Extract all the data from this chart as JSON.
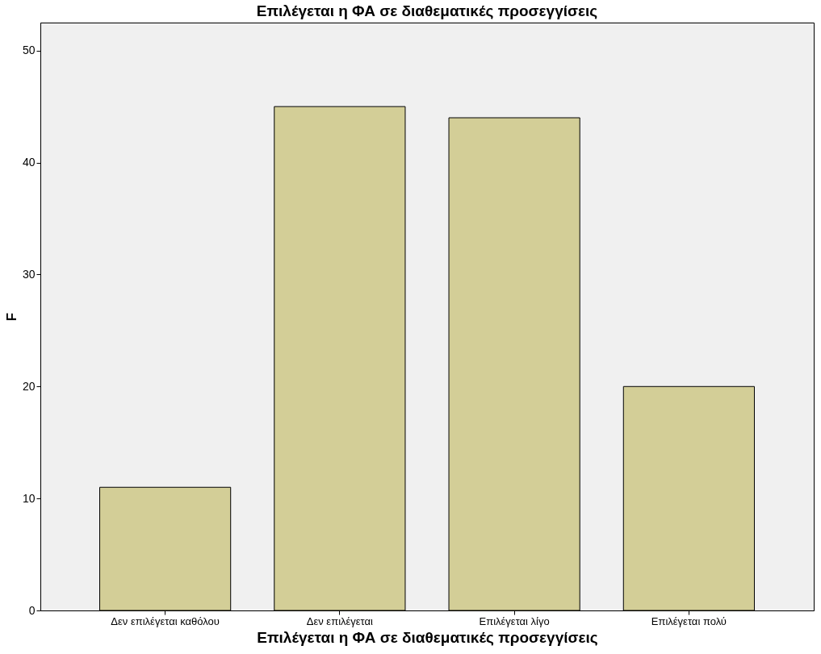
{
  "chart_data": {
    "type": "bar",
    "title": "Επιλέγεται η ΦΑ σε διαθεματικές προσεγγίσεις",
    "xlabel": "Επιλέγεται η ΦΑ σε διαθεματικές προσεγγίσεις",
    "ylabel": "F",
    "categories": [
      "Δεν επιλέγεται καθόλου",
      "Δεν επιλέγεται",
      "Επιλέγεται λίγο",
      "Επιλέγεται πολύ"
    ],
    "values": [
      11,
      45,
      44,
      20
    ],
    "color": "#d3ce97",
    "ylim": [
      0,
      52.5
    ],
    "yticks": [
      0,
      10,
      20,
      30,
      40,
      50
    ]
  }
}
